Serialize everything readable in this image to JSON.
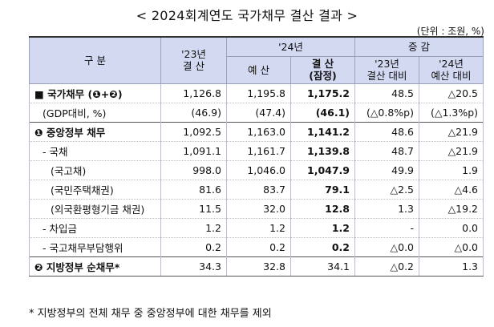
{
  "title": "< 2024회계연도 국가채무 결산 결과 >",
  "unit": "(단위 : 조원, %)",
  "headers": {
    "category": "구 분",
    "y23_top": "'23년",
    "y23_bottom": "결 산",
    "y24": "'24년",
    "budget": "예 산",
    "settle_top": "결 산",
    "settle_bottom": "(잠정)",
    "change": "증 감",
    "vs23_top": "'23년",
    "vs23_bottom": "결산 대비",
    "vs24_top": "'24년",
    "vs24_bottom": "예산 대비"
  },
  "rows": [
    {
      "label": "■  국가채무 (❶+❷)",
      "c1": "1,126.8",
      "c2": "1,195.8",
      "c3": "1,175.2",
      "c4": "48.5",
      "c5": "△20.5"
    },
    {
      "label": "(GDP대비, %)",
      "c1": "(46.9)",
      "c2": "(47.4)",
      "c3": "(46.1)",
      "c4": "(△0.8%p)",
      "c5": "(△1.3%p)"
    },
    {
      "label": "❶ 중앙정부 채무",
      "c1": "1,092.5",
      "c2": "1,163.0",
      "c3": "1,141.2",
      "c4": "48.6",
      "c5": "△21.9"
    },
    {
      "label": "- 국채",
      "c1": "1,091.1",
      "c2": "1,161.7",
      "c3": "1,139.8",
      "c4": "48.7",
      "c5": "△21.9"
    },
    {
      "label": "(국고채)",
      "c1": "998.0",
      "c2": "1,046.0",
      "c3": "1,047.9",
      "c4": "49.9",
      "c5": "1.9"
    },
    {
      "label": "(국민주택채권)",
      "c1": "81.6",
      "c2": "83.7",
      "c3": "79.1",
      "c4": "△2.5",
      "c5": "△4.6"
    },
    {
      "label": "(외국환평형기금 채권)",
      "c1": "11.5",
      "c2": "32.0",
      "c3": "12.8",
      "c4": "1.3",
      "c5": "△19.2"
    },
    {
      "label": "- 차입금",
      "c1": "1.2",
      "c2": "1.2",
      "c3": "1.2",
      "c4": "-",
      "c5": "0.0"
    },
    {
      "label": "- 국고채무부담행위",
      "c1": "0.2",
      "c2": "0.2",
      "c3": "0.2",
      "c4": "△0.0",
      "c5": "△0.0"
    },
    {
      "label": "❷ 지방정부 순채무*",
      "c1": "34.3",
      "c2": "32.8",
      "c3": "34.1",
      "c4": "△0.2",
      "c5": "1.3"
    }
  ],
  "footnote": "* 지방정부의 전체 채무 중 중앙정부에 대한 채무를 제외"
}
